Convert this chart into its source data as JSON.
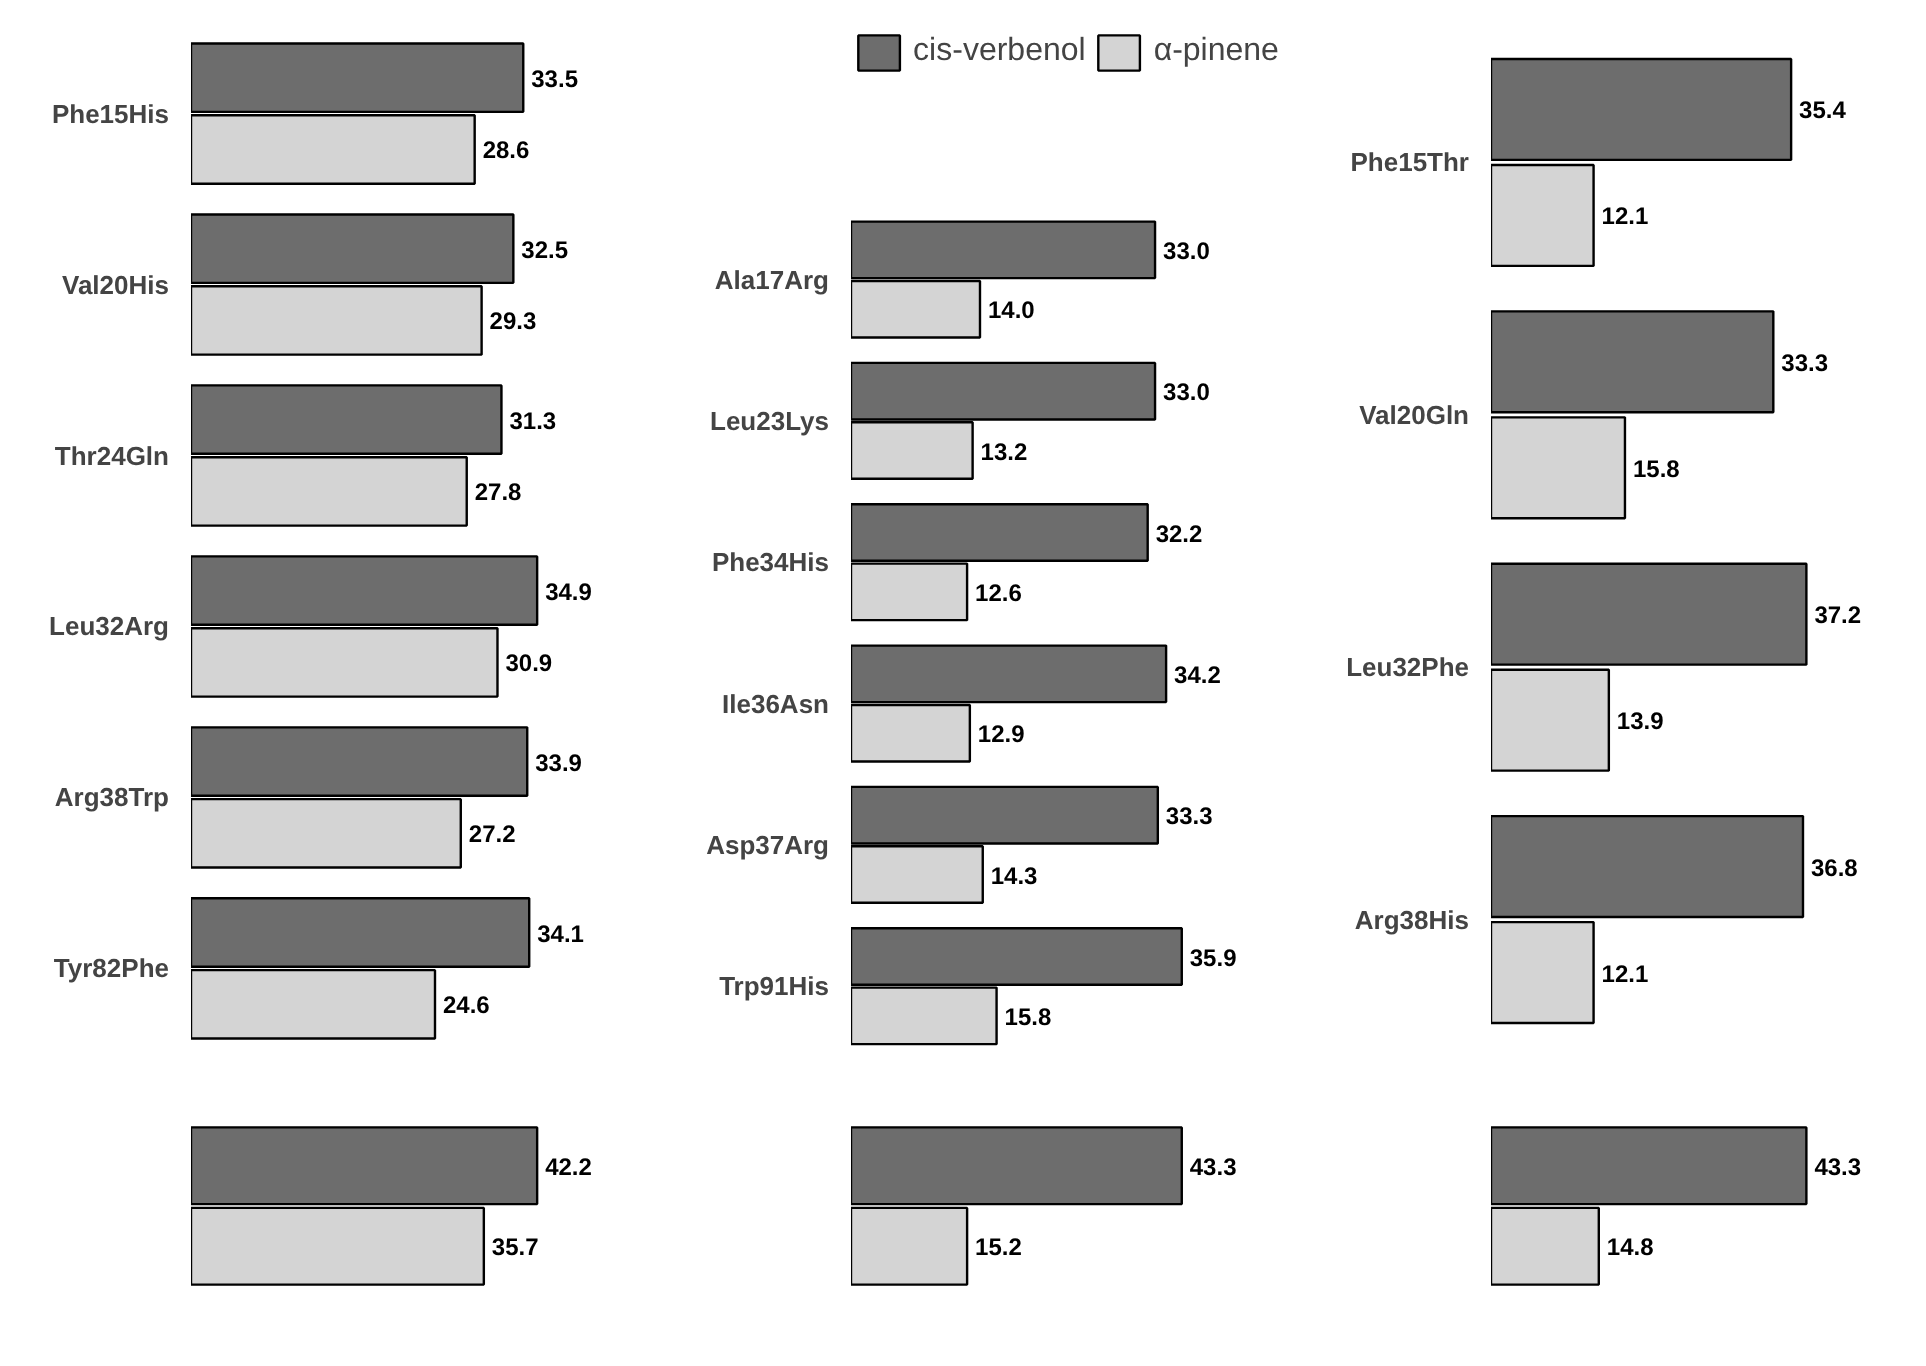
{
  "chart_data": [
    {
      "type": "bar",
      "orientation": "horizontal",
      "categories": [
        "Phe15His",
        "Val20His",
        "Thr24Gln",
        "Leu32Arg",
        "Arg38Trp",
        "Tyr82Phe"
      ],
      "series": [
        {
          "color": "#6d6d6d",
          "values": [
            33.5,
            32.5,
            31.3,
            34.9,
            33.9,
            34.1
          ],
          "value_labels": [
            "33.5",
            "32.5",
            "31.3",
            "34.9",
            "33.9",
            "34.1"
          ]
        },
        {
          "color": "#d4d4d4",
          "values": [
            28.6,
            29.3,
            27.8,
            30.9,
            27.2,
            24.6
          ],
          "value_labels": [
            "28.6",
            "29.3",
            "27.8",
            "30.9",
            "27.2",
            "24.6"
          ]
        }
      ]
    },
    {
      "type": "bar",
      "orientation": "horizontal",
      "legend": "top",
      "categories": [
        "Ala17Arg",
        "Leu23Lys",
        "Phe34His",
        "Ile36Asn",
        "Asp37Arg",
        "Trp91His"
      ],
      "series": [
        {
          "name": "cis-verbenol",
          "color": "#6d6d6d",
          "values": [
            33.0,
            33.0,
            32.2,
            34.2,
            33.3,
            35.9
          ],
          "value_labels": [
            "33.0",
            "33.0",
            "32.2",
            "34.2",
            "33.3",
            "35.9"
          ]
        },
        {
          "name": "α-pinene",
          "color": "#d4d4d4",
          "values": [
            14.0,
            13.2,
            12.6,
            12.9,
            14.3,
            15.8
          ],
          "value_labels": [
            "14.0",
            "13.2",
            "12.6",
            "12.9",
            "14.3",
            "15.8"
          ]
        }
      ]
    },
    {
      "type": "bar",
      "orientation": "horizontal",
      "categories": [
        "Phe15Thr",
        "Val20Gln",
        "Leu32Phe",
        "Arg38His"
      ],
      "series": [
        {
          "color": "#6d6d6d",
          "values": [
            35.4,
            33.3,
            37.2,
            36.8
          ],
          "value_labels": [
            "35.4",
            "33.3",
            "37.2",
            "36.8"
          ]
        },
        {
          "color": "#d4d4d4",
          "values": [
            12.1,
            15.8,
            13.9,
            12.1
          ],
          "value_labels": [
            "12.1",
            "15.8",
            "13.9",
            "12.1"
          ]
        }
      ]
    },
    {
      "type": "bar",
      "orientation": "horizontal",
      "categories": [
        null
      ],
      "series": [
        {
          "color": "#6d6d6d",
          "values": [
            42.2
          ],
          "value_labels": [
            "42.2"
          ]
        },
        {
          "color": "#d4d4d4",
          "values": [
            35.7
          ],
          "value_labels": [
            "35.7"
          ]
        }
      ]
    },
    {
      "type": "bar",
      "orientation": "horizontal",
      "categories": [
        null
      ],
      "series": [
        {
          "color": "#6d6d6d",
          "values": [
            43.3
          ],
          "value_labels": [
            "43.3"
          ]
        },
        {
          "color": "#d4d4d4",
          "values": [
            15.2
          ],
          "value_labels": [
            "15.2"
          ]
        }
      ]
    },
    {
      "type": "bar",
      "orientation": "horizontal",
      "categories": [
        null
      ],
      "series": [
        {
          "color": "#6d6d6d",
          "values": [
            43.3
          ],
          "value_labels": [
            "43.3"
          ]
        },
        {
          "color": "#d4d4d4",
          "values": [
            14.8
          ],
          "value_labels": [
            "14.8"
          ]
        }
      ]
    }
  ]
}
